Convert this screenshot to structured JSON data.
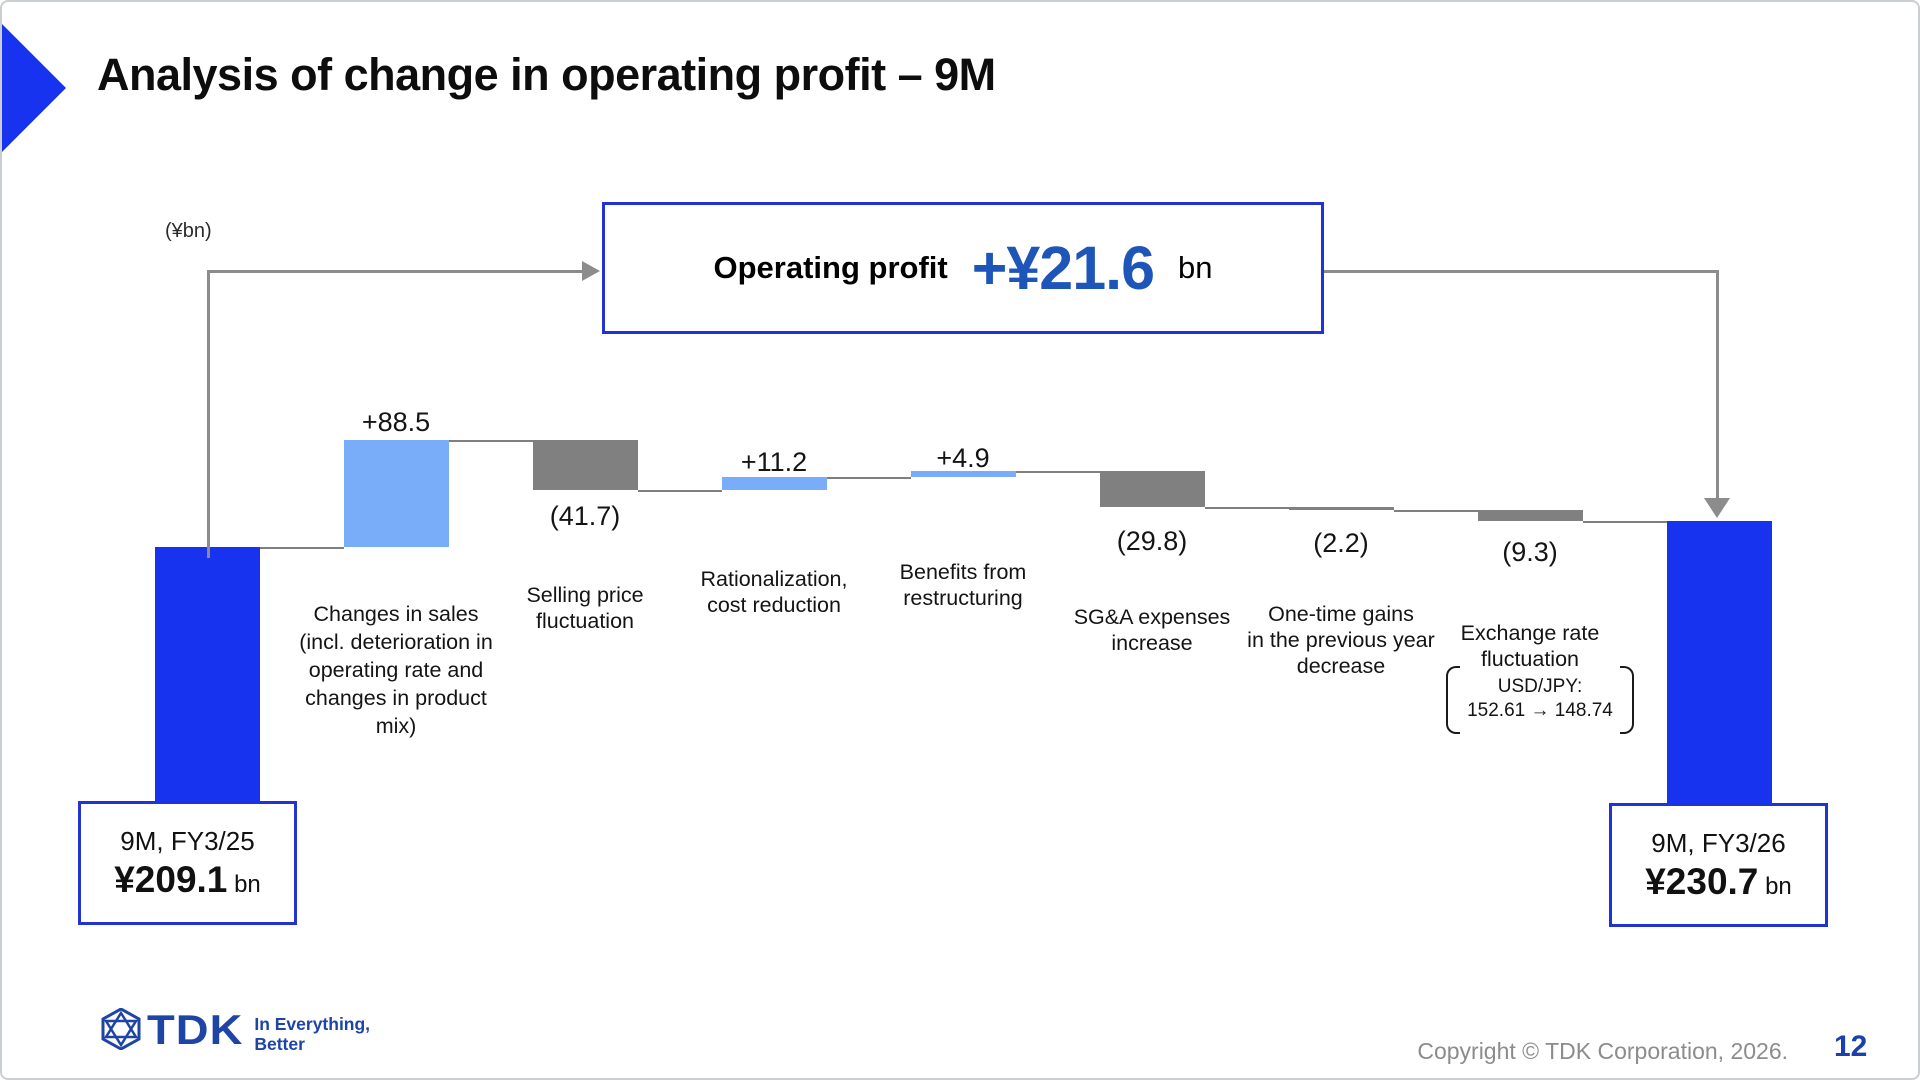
{
  "slide": {
    "title": "Analysis of change in operating profit – 9M",
    "unit_label": "(¥bn)",
    "page_number": "12",
    "copyright": "Copyright © TDK Corporation, 2026.",
    "logo": {
      "brand": "TDK",
      "tagline_line1": "In Everything,",
      "tagline_line2": "Better"
    }
  },
  "summary_box": {
    "label": "Operating profit",
    "value": "+¥21.6",
    "unit": "bn"
  },
  "chart_data": {
    "type": "waterfall",
    "unit": "¥bn",
    "title": "Analysis of change in operating profit – 9M",
    "start": {
      "period": "9M, FY3/25",
      "value": 209.1,
      "value_label": "¥209.1",
      "unit": "bn"
    },
    "end": {
      "period": "9M, FY3/26",
      "value": 230.7,
      "value_label": "¥230.7",
      "unit": "bn"
    },
    "total_change": {
      "label": "Operating profit",
      "value": 21.6,
      "value_label": "+¥21.6",
      "unit": "bn"
    },
    "deltas": [
      {
        "value": 88.5,
        "label": "+88.5",
        "category_lines": [
          "Changes in sales",
          "(incl. deterioration in",
          "operating rate and",
          "changes in product",
          "mix)"
        ]
      },
      {
        "value": -41.7,
        "label": "(41.7)",
        "category_lines": [
          "Selling price",
          "fluctuation"
        ]
      },
      {
        "value": 11.2,
        "label": "+11.2",
        "category_lines": [
          "Rationalization,",
          "cost reduction"
        ]
      },
      {
        "value": 4.9,
        "label": "+4.9",
        "category_lines": [
          "Benefits from",
          "restructuring"
        ]
      },
      {
        "value": -29.8,
        "label": "(29.8)",
        "category_lines": [
          "SG&A expenses",
          "increase"
        ]
      },
      {
        "value": -2.2,
        "label": "(2.2)",
        "category_lines": [
          "One-time gains",
          "in the previous year",
          "decrease"
        ]
      },
      {
        "value": -9.3,
        "label": "(9.3)",
        "category_lines": [
          "Exchange rate",
          "fluctuation"
        ],
        "note_lines": [
          "USD/JPY:",
          "152.61 → 148.74"
        ]
      }
    ],
    "colors": {
      "start_end": "#1733f0",
      "increase": "#79adfa",
      "decrease": "#808080"
    }
  }
}
